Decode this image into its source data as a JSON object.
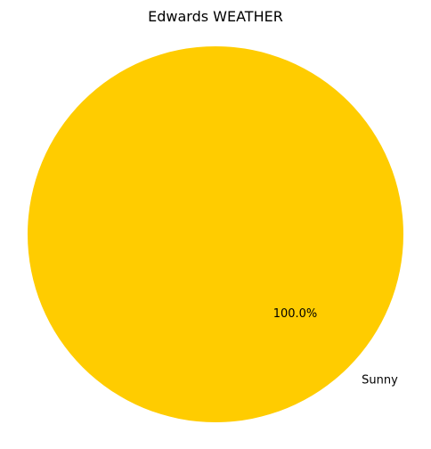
{
  "chart_data": {
    "type": "pie",
    "title": "Edwards WEATHER",
    "slices": [
      {
        "label": "Sunny",
        "value": 100.0,
        "pct_label": "100.0%",
        "color": "#ffcc00"
      }
    ]
  }
}
